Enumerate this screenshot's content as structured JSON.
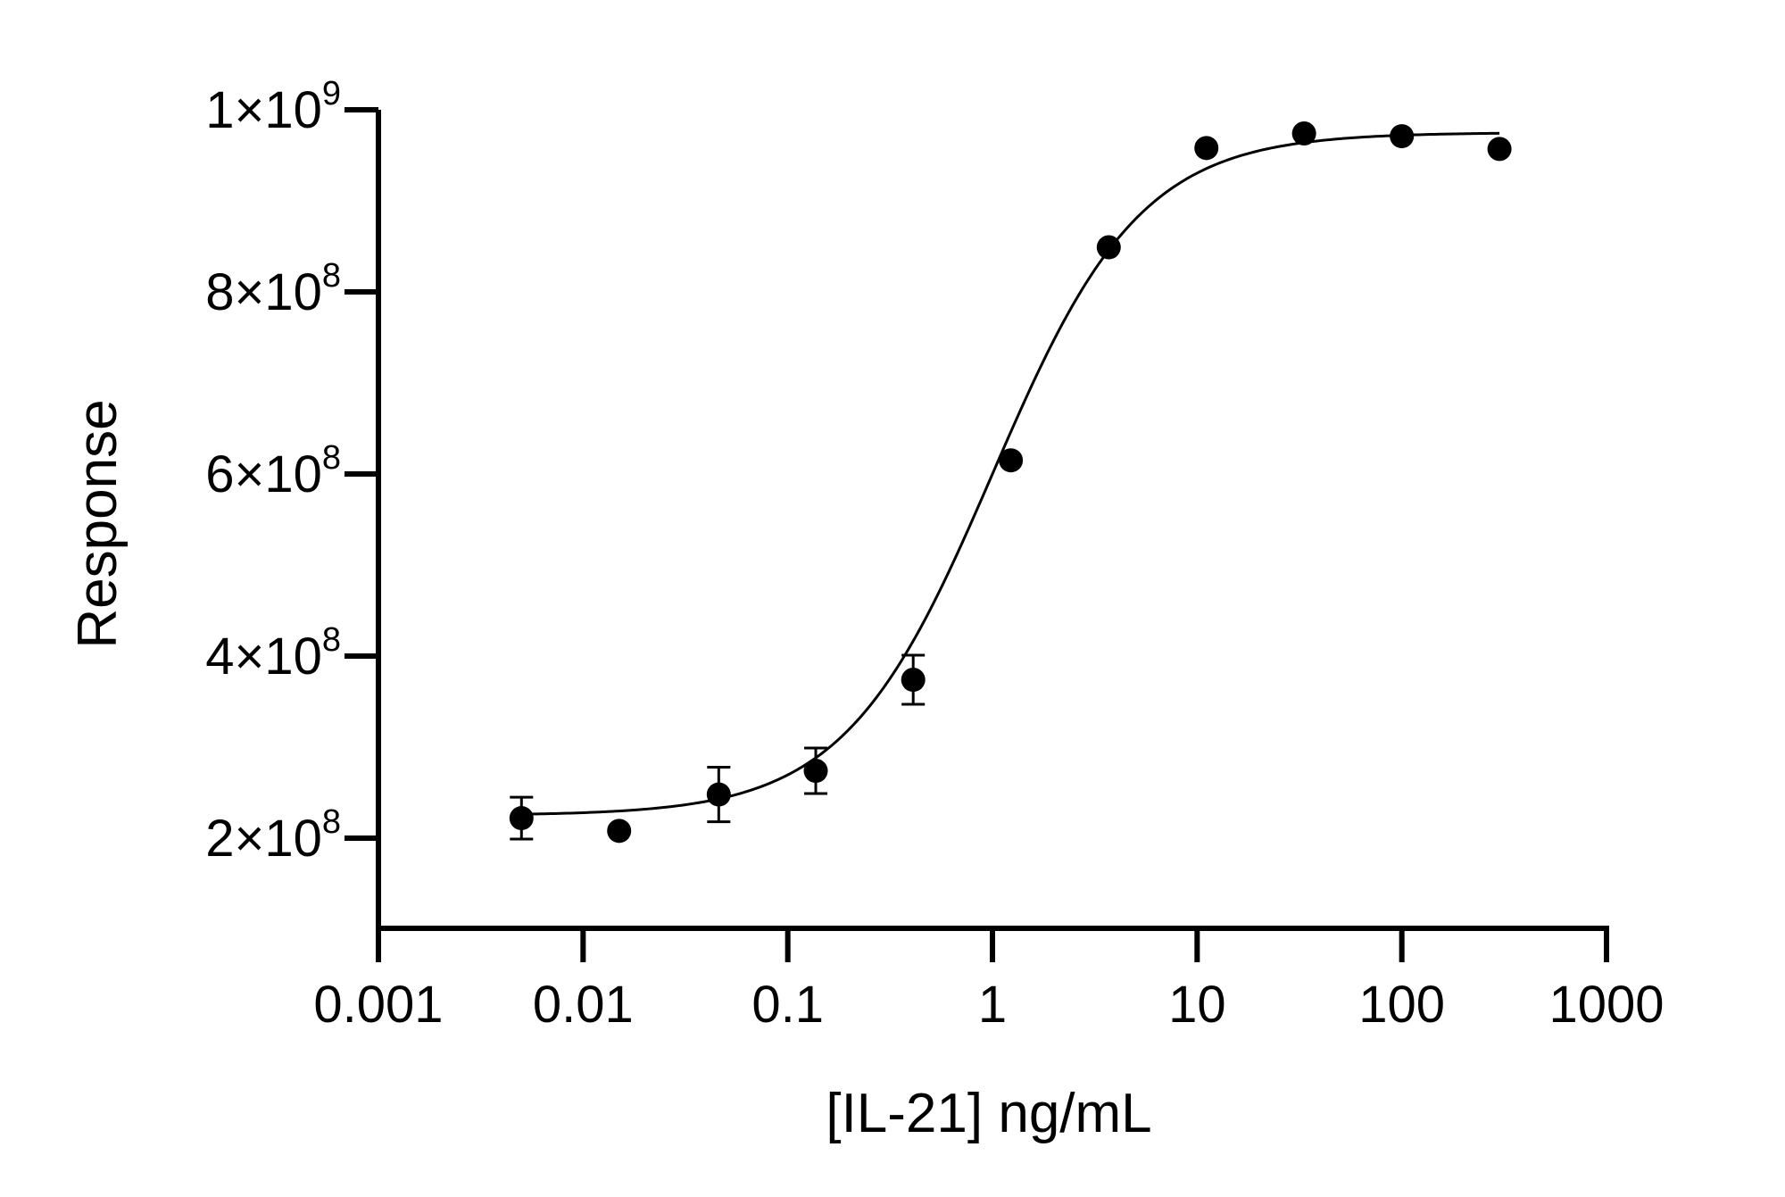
{
  "chart_data": {
    "type": "scatter",
    "xlabel": "[IL-21] ng/mL",
    "ylabel": "Response",
    "x_scale": "log",
    "xlim": [
      0.001,
      1000
    ],
    "ylim": [
      100000000,
      1000000000
    ],
    "grid": false,
    "x_ticks": [
      {
        "value": 0.001,
        "label": "0.001"
      },
      {
        "value": 0.01,
        "label": "0.01"
      },
      {
        "value": 0.1,
        "label": "0.1"
      },
      {
        "value": 1,
        "label": "1"
      },
      {
        "value": 10,
        "label": "10"
      },
      {
        "value": 100,
        "label": "100"
      },
      {
        "value": 1000,
        "label": "1000"
      }
    ],
    "y_ticks": [
      {
        "value": 200000000,
        "mantissa": "2×10",
        "exponent": "8"
      },
      {
        "value": 400000000,
        "mantissa": "4×10",
        "exponent": "8"
      },
      {
        "value": 600000000,
        "mantissa": "6×10",
        "exponent": "8"
      },
      {
        "value": 800000000,
        "mantissa": "8×10",
        "exponent": "8"
      },
      {
        "value": 1000000000,
        "mantissa": "1×10",
        "exponent": "9"
      }
    ],
    "series": [
      {
        "x": [
          0.005,
          0.015,
          0.046,
          0.137,
          0.41,
          1.23,
          3.7,
          11.1,
          33.3,
          100,
          300
        ],
        "y": [
          222000000,
          208000000,
          248000000,
          274000000,
          374000000,
          615000000,
          849000000,
          958000000,
          974000000,
          971000000,
          957000000
        ],
        "error": [
          23000000,
          0,
          30000000,
          25000000,
          27000000,
          0,
          0,
          0,
          0,
          0,
          0
        ]
      }
    ],
    "fit": {
      "model": "four-parameter logistic",
      "bottom": 225000000,
      "top": 975000000,
      "ec50": 1.0,
      "hill": 1.2,
      "x_range": [
        0.005,
        300
      ]
    },
    "colors": {
      "marker": "#000000",
      "line": "#000000",
      "axis": "#000000"
    }
  }
}
